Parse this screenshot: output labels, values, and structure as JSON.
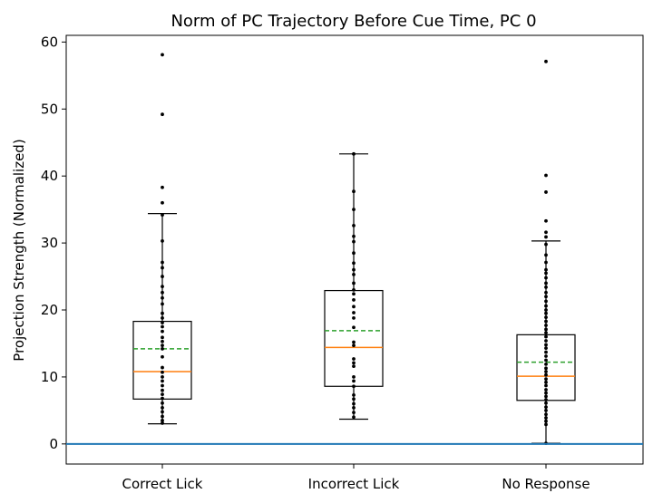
{
  "chart_data": {
    "type": "box",
    "title": "Norm of PC Trajectory Before Cue Time, PC 0",
    "xlabel": "",
    "ylabel": "Projection Strength (Normalized)",
    "ylim": [
      -3,
      61
    ],
    "yticks": [
      0,
      10,
      20,
      30,
      40,
      50,
      60
    ],
    "categories": [
      "Correct Lick",
      "Incorrect Lick",
      "No Response"
    ],
    "horizontal_line": {
      "y": 0,
      "color": "#1f77b4"
    },
    "colors": {
      "box": "#000000",
      "median": "#ff7f0e",
      "mean": "#2ca02c",
      "points": "#000000"
    },
    "boxes": [
      {
        "name": "Correct Lick",
        "whisker_low": 3.0,
        "q1": 6.7,
        "median": 10.8,
        "mean": 14.2,
        "q3": 18.3,
        "whisker_high": 34.4,
        "points": [
          58.1,
          49.2,
          38.3,
          36.0,
          34.2,
          30.3,
          27.1,
          26.3,
          25.0,
          23.5,
          22.6,
          21.8,
          20.9,
          19.5,
          18.8,
          18.1,
          17.5,
          16.8,
          15.9,
          15.3,
          14.7,
          14.2,
          13.0,
          11.4,
          10.7,
          10.0,
          9.4,
          8.7,
          8.0,
          7.4,
          6.8,
          6.1,
          5.4,
          4.8,
          4.1,
          3.5,
          3.1
        ]
      },
      {
        "name": "Incorrect Lick",
        "whisker_low": 3.7,
        "q1": 8.6,
        "median": 14.4,
        "mean": 16.9,
        "q3": 22.9,
        "whisker_high": 43.3,
        "points": [
          43.3,
          37.7,
          35.0,
          32.6,
          31.0,
          30.2,
          28.5,
          27.0,
          26.0,
          25.3,
          24.0,
          23.0,
          22.4,
          21.5,
          20.5,
          19.6,
          18.8,
          17.4,
          15.2,
          14.7,
          12.7,
          12.1,
          11.6,
          10.0,
          9.4,
          8.6,
          7.3,
          6.7,
          6.0,
          5.4,
          4.7,
          4.0
        ]
      },
      {
        "name": "No Response",
        "whisker_low": 0.1,
        "q1": 6.5,
        "median": 10.1,
        "mean": 12.2,
        "q3": 16.3,
        "whisker_high": 30.3,
        "points": [
          57.1,
          40.1,
          37.6,
          33.3,
          31.6,
          30.9,
          29.8,
          28.2,
          27.1,
          26.0,
          25.5,
          24.8,
          24.0,
          23.4,
          22.6,
          22.0,
          21.3,
          20.6,
          20.0,
          19.5,
          18.9,
          18.3,
          17.7,
          17.1,
          16.6,
          16.0,
          15.4,
          14.8,
          14.3,
          13.7,
          13.1,
          12.5,
          11.9,
          11.3,
          10.8,
          10.3,
          9.7,
          9.2,
          8.7,
          8.1,
          7.6,
          7.1,
          6.6,
          6.1,
          5.5,
          5.0,
          4.4,
          3.9,
          3.4,
          2.9,
          0.1
        ]
      }
    ]
  }
}
